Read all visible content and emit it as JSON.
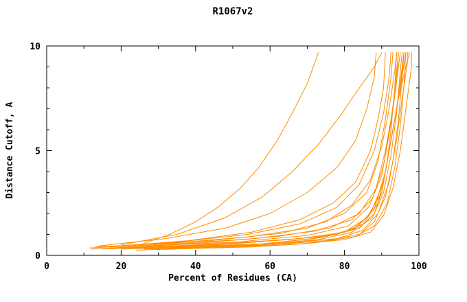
{
  "chart_data": {
    "type": "line",
    "title": "R1067v2",
    "xlabel": "Percent of Residues (CA)",
    "ylabel": "Distance Cutoff, A",
    "xlim": [
      0,
      100
    ],
    "ylim": [
      0,
      10
    ],
    "x_major_ticks": [
      0,
      20,
      40,
      60,
      80,
      100
    ],
    "x_minor_step": 10,
    "y_major_ticks": [
      0,
      5,
      10
    ],
    "y_minor_step": 1,
    "grid": false,
    "legend": "none",
    "line_color": "#ff8c00",
    "frame_color": "#000000",
    "series": [
      {
        "name": "curve-01",
        "points": [
          [
            12,
            0.3
          ],
          [
            40,
            0.5
          ],
          [
            60,
            0.7
          ],
          [
            75,
            0.9
          ],
          [
            84,
            1.3
          ],
          [
            88,
            2
          ],
          [
            90,
            3
          ],
          [
            91.5,
            4.5
          ],
          [
            92.5,
            6
          ],
          [
            93.5,
            8
          ],
          [
            94,
            9.7
          ]
        ]
      },
      {
        "name": "curve-02",
        "points": [
          [
            15,
            0.3
          ],
          [
            45,
            0.5
          ],
          [
            65,
            0.75
          ],
          [
            78,
            1.0
          ],
          [
            85,
            1.5
          ],
          [
            89,
            2.5
          ],
          [
            91,
            4
          ],
          [
            93,
            6
          ],
          [
            95,
            8
          ],
          [
            96,
            9.7
          ]
        ]
      },
      {
        "name": "curve-03",
        "points": [
          [
            18,
            0.35
          ],
          [
            50,
            0.55
          ],
          [
            68,
            0.8
          ],
          [
            80,
            1.1
          ],
          [
            86,
            1.8
          ],
          [
            90,
            3
          ],
          [
            92,
            5
          ],
          [
            94,
            7
          ],
          [
            95.5,
            9
          ],
          [
            96,
            9.7
          ]
        ]
      },
      {
        "name": "curve-04",
        "points": [
          [
            20,
            0.3
          ],
          [
            55,
            0.5
          ],
          [
            72,
            0.8
          ],
          [
            82,
            1.2
          ],
          [
            87,
            2
          ],
          [
            90.5,
            3.5
          ],
          [
            92.5,
            5.5
          ],
          [
            94.5,
            7.5
          ],
          [
            96.5,
            9
          ],
          [
            97.5,
            9.7
          ]
        ]
      },
      {
        "name": "curve-05",
        "points": [
          [
            24,
            0.35
          ],
          [
            58,
            0.55
          ],
          [
            74,
            0.85
          ],
          [
            83,
            1.3
          ],
          [
            88,
            2.2
          ],
          [
            91,
            4
          ],
          [
            93,
            6
          ],
          [
            95,
            8
          ],
          [
            96.5,
            9.7
          ]
        ]
      },
      {
        "name": "curve-06",
        "points": [
          [
            13,
            0.4
          ],
          [
            35,
            0.6
          ],
          [
            55,
            0.9
          ],
          [
            70,
            1.3
          ],
          [
            80,
            2
          ],
          [
            86,
            3
          ],
          [
            89,
            4.5
          ],
          [
            91,
            6.5
          ],
          [
            92.5,
            8.5
          ],
          [
            93,
            9.7
          ]
        ]
      },
      {
        "name": "curve-07",
        "points": [
          [
            16,
            0.4
          ],
          [
            38,
            0.7
          ],
          [
            55,
            1.1
          ],
          [
            68,
            1.7
          ],
          [
            77,
            2.5
          ],
          [
            83,
            3.5
          ],
          [
            87,
            5
          ],
          [
            89,
            6.5
          ],
          [
            90.5,
            8
          ],
          [
            91,
            9.7
          ]
        ]
      },
      {
        "name": "curve-08",
        "points": [
          [
            14,
            0.45
          ],
          [
            32,
            0.8
          ],
          [
            48,
            1.3
          ],
          [
            60,
            2
          ],
          [
            70,
            3
          ],
          [
            78,
            4.2
          ],
          [
            83,
            5.5
          ],
          [
            86,
            7
          ],
          [
            88,
            8.5
          ],
          [
            88.5,
            9.7
          ]
        ]
      },
      {
        "name": "curve-09",
        "points": [
          [
            25,
            0.5
          ],
          [
            33,
            1
          ],
          [
            40,
            1.6
          ],
          [
            46,
            2.3
          ],
          [
            52,
            3.2
          ],
          [
            57,
            4.2
          ],
          [
            62,
            5.5
          ],
          [
            66,
            6.8
          ],
          [
            70,
            8.2
          ],
          [
            73,
            9.7
          ]
        ]
      },
      {
        "name": "curve-10",
        "points": [
          [
            20,
            0.5
          ],
          [
            35,
            1
          ],
          [
            48,
            1.8
          ],
          [
            58,
            2.8
          ],
          [
            66,
            4
          ],
          [
            73,
            5.3
          ],
          [
            79,
            6.7
          ],
          [
            84,
            8
          ],
          [
            88,
            9
          ],
          [
            90,
            9.7
          ]
        ]
      },
      {
        "name": "curve-11",
        "points": [
          [
            28,
            0.3
          ],
          [
            60,
            0.5
          ],
          [
            75,
            0.7
          ],
          [
            84,
            1.0
          ],
          [
            88,
            1.6
          ],
          [
            91,
            2.8
          ],
          [
            93,
            4.5
          ],
          [
            94.5,
            6.5
          ],
          [
            95.5,
            8.5
          ],
          [
            96,
            9.7
          ]
        ]
      },
      {
        "name": "curve-12",
        "points": [
          [
            30,
            0.35
          ],
          [
            62,
            0.55
          ],
          [
            78,
            0.8
          ],
          [
            85,
            1.2
          ],
          [
            89,
            2
          ],
          [
            92,
            3.5
          ],
          [
            94,
            5.5
          ],
          [
            95.5,
            7.5
          ],
          [
            97,
            9.3
          ],
          [
            97,
            9.7
          ]
        ]
      },
      {
        "name": "curve-13",
        "points": [
          [
            22,
            0.4
          ],
          [
            52,
            0.65
          ],
          [
            70,
            0.95
          ],
          [
            81,
            1.4
          ],
          [
            86.5,
            2.3
          ],
          [
            90,
            3.8
          ],
          [
            92,
            5.8
          ],
          [
            93.5,
            7.8
          ],
          [
            94.5,
            9.7
          ]
        ]
      },
      {
        "name": "curve-14",
        "points": [
          [
            17,
            0.35
          ],
          [
            42,
            0.6
          ],
          [
            62,
            0.9
          ],
          [
            76,
            1.3
          ],
          [
            84,
            2
          ],
          [
            88.5,
            3.2
          ],
          [
            91,
            5
          ],
          [
            93,
            7
          ],
          [
            94.5,
            9
          ],
          [
            95,
            9.7
          ]
        ]
      },
      {
        "name": "curve-15",
        "points": [
          [
            26,
            0.3
          ],
          [
            56,
            0.5
          ],
          [
            73,
            0.75
          ],
          [
            82,
            1.1
          ],
          [
            87.5,
            1.8
          ],
          [
            90.5,
            3
          ],
          [
            92.5,
            4.8
          ],
          [
            94,
            6.8
          ],
          [
            95,
            8.8
          ],
          [
            95.5,
            9.7
          ]
        ]
      },
      {
        "name": "curve-16",
        "points": [
          [
            15,
            0.4
          ],
          [
            36,
            0.65
          ],
          [
            54,
            1
          ],
          [
            68,
            1.5
          ],
          [
            78,
            2.3
          ],
          [
            84,
            3.4
          ],
          [
            88,
            5
          ],
          [
            90.5,
            6.8
          ],
          [
            92,
            8.5
          ],
          [
            92.5,
            9.7
          ]
        ]
      },
      {
        "name": "curve-17",
        "points": [
          [
            19,
            0.45
          ],
          [
            44,
            0.7
          ],
          [
            63,
            1.05
          ],
          [
            75,
            1.6
          ],
          [
            82,
            2.4
          ],
          [
            87,
            3.6
          ],
          [
            90,
            5.2
          ],
          [
            92,
            7
          ],
          [
            93.5,
            8.8
          ],
          [
            94,
            9.7
          ]
        ]
      },
      {
        "name": "curve-18",
        "points": [
          [
            32,
            0.3
          ],
          [
            65,
            0.5
          ],
          [
            80,
            0.75
          ],
          [
            87,
            1.1
          ],
          [
            90.5,
            1.9
          ],
          [
            93,
            3.2
          ],
          [
            95,
            5
          ],
          [
            96.5,
            7
          ],
          [
            98,
            9
          ],
          [
            98,
            9.7
          ]
        ]
      },
      {
        "name": "curve-19",
        "points": [
          [
            24,
            0.25
          ],
          [
            55,
            0.4
          ],
          [
            72,
            0.6
          ],
          [
            83,
            0.9
          ],
          [
            88,
            1.4
          ],
          [
            91.5,
            2.5
          ],
          [
            93.5,
            4.2
          ],
          [
            95,
            6.2
          ],
          [
            96,
            8.2
          ],
          [
            96.5,
            9.7
          ]
        ]
      },
      {
        "name": "curve-20",
        "points": [
          [
            11.5,
            0.35
          ],
          [
            34,
            0.55
          ],
          [
            56,
            0.8
          ],
          [
            72,
            1.15
          ],
          [
            82,
            1.7
          ],
          [
            87.5,
            2.7
          ],
          [
            90.5,
            4.3
          ],
          [
            92.5,
            6.3
          ],
          [
            94,
            8.3
          ],
          [
            94.5,
            9.7
          ]
        ]
      }
    ]
  }
}
